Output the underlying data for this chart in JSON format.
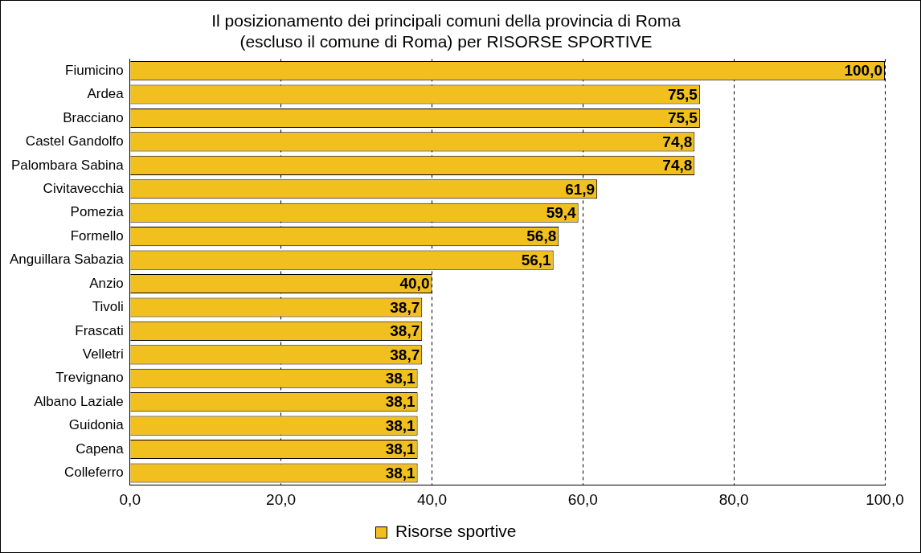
{
  "chart_data": {
    "type": "bar",
    "orientation": "horizontal",
    "title": [
      "Il posizionamento dei principali comuni della provincia di Roma",
      "(escluso il comune di Roma) per RISORSE SPORTIVE"
    ],
    "categories": [
      "Fiumicino",
      "Ardea",
      "Bracciano",
      "Castel Gandolfo",
      "Palombara Sabina",
      "Civitavecchia",
      "Pomezia",
      "Formello",
      "Anguillara Sabazia",
      "Anzio",
      "Tivoli",
      "Frascati",
      "Velletri",
      "Trevignano",
      "Albano Laziale",
      "Guidonia",
      "Capena",
      "Colleferro"
    ],
    "series": [
      {
        "name": "Risorse sportive",
        "color": "#f2c01e",
        "values": [
          100.0,
          75.5,
          75.5,
          74.8,
          74.8,
          61.9,
          59.4,
          56.8,
          56.1,
          40.0,
          38.7,
          38.7,
          38.7,
          38.1,
          38.1,
          38.1,
          38.1,
          38.1
        ],
        "value_labels": [
          "100,0",
          "75,5",
          "75,5",
          "74,8",
          "74,8",
          "61,9",
          "59,4",
          "56,8",
          "56,1",
          "40,0",
          "38,7",
          "38,7",
          "38,7",
          "38,1",
          "38,1",
          "38,1",
          "38,1",
          "38,1"
        ]
      }
    ],
    "xlim": [
      0,
      100
    ],
    "xticks": [
      {
        "value": 0,
        "label": "0,0"
      },
      {
        "value": 20,
        "label": "20,0"
      },
      {
        "value": 40,
        "label": "40,0"
      },
      {
        "value": 60,
        "label": "60,0"
      },
      {
        "value": 80,
        "label": "80,0"
      },
      {
        "value": 100,
        "label": "100,0"
      }
    ],
    "grid": "x",
    "legend": "bottom"
  }
}
